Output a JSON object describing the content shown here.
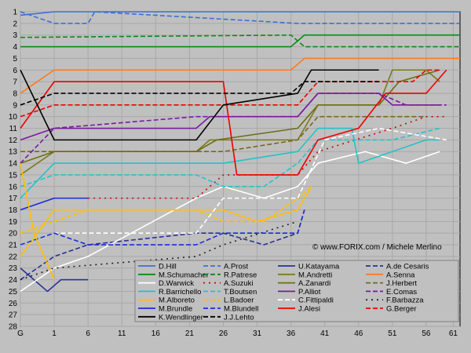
{
  "chart_data": {
    "type": "line",
    "x_ticks": [
      "G",
      "1",
      "6",
      "11",
      "16",
      "21",
      "26",
      "31",
      "36",
      "41",
      "46",
      "51",
      "56",
      "61"
    ],
    "y_ticks": [
      1,
      2,
      3,
      4,
      5,
      6,
      7,
      8,
      9,
      10,
      11,
      12,
      13,
      14,
      15,
      16,
      17,
      18,
      19,
      20,
      21,
      22,
      23,
      24,
      25,
      26,
      27,
      28
    ],
    "xlim": [
      0,
      65
    ],
    "ylim": [
      1,
      28
    ],
    "grid": true,
    "legend_placement": "bottom-right",
    "credit": "© www.FORIX.com / Michele Merlino",
    "series": [
      {
        "name": "D.Hill",
        "color": "#3a6fd8",
        "dash": "solid",
        "points": [
          [
            0,
            1.3
          ],
          [
            5,
            1
          ],
          [
            10,
            1
          ],
          [
            11,
            1
          ],
          [
            41,
            1
          ],
          [
            65,
            1
          ]
        ]
      },
      {
        "name": "A.Prost",
        "color": "#3a6fd8",
        "dash": "dashed",
        "points": [
          [
            0,
            1
          ],
          [
            5,
            2
          ],
          [
            10,
            2
          ],
          [
            11,
            1
          ],
          [
            41,
            2
          ],
          [
            65,
            2
          ]
        ]
      },
      {
        "name": "U.Katayama",
        "color": "#2a2f99",
        "dash": "solid",
        "points": [
          [
            0,
            23
          ],
          [
            4,
            25
          ],
          [
            6,
            24
          ],
          [
            10,
            24
          ]
        ]
      },
      {
        "name": "A.de Cesaris",
        "color": "#2a2f99",
        "dash": "dashed",
        "points": [
          [
            0,
            24
          ],
          [
            5,
            22
          ],
          [
            10,
            21
          ],
          [
            26,
            20
          ],
          [
            30,
            20
          ],
          [
            36,
            21
          ],
          [
            41,
            20
          ],
          [
            42,
            18
          ]
        ]
      },
      {
        "name": "M.Schumacher",
        "color": "#0a8a16",
        "dash": "solid",
        "points": [
          [
            0,
            4
          ],
          [
            40,
            4
          ],
          [
            42,
            3
          ],
          [
            65,
            3
          ]
        ]
      },
      {
        "name": "R.Patrese",
        "color": "#0a8a16",
        "dash": "dashed",
        "points": [
          [
            0,
            3.2
          ],
          [
            40,
            3
          ],
          [
            42,
            4
          ],
          [
            65,
            4
          ]
        ]
      },
      {
        "name": "M.Andretti",
        "color": "#7a7a1c",
        "dash": "solid",
        "points": [
          [
            0,
            15
          ],
          [
            5,
            13
          ],
          [
            26,
            13
          ],
          [
            28,
            12
          ],
          [
            41,
            12
          ],
          [
            44,
            9
          ],
          [
            53,
            9
          ],
          [
            55,
            6
          ],
          [
            60,
            6
          ],
          [
            62,
            7
          ]
        ]
      },
      {
        "name": "A.Senna",
        "color": "#ff7a1a",
        "dash": "solid",
        "points": [
          [
            0,
            8
          ],
          [
            5,
            6
          ],
          [
            40,
            6
          ],
          [
            42,
            5
          ],
          [
            65,
            5
          ]
        ]
      },
      {
        "name": "D.Warwick",
        "color": "#ffffff",
        "dash": "solid",
        "points": [
          [
            0,
            25
          ],
          [
            5,
            23
          ],
          [
            10,
            22
          ],
          [
            26,
            17
          ],
          [
            30,
            16
          ],
          [
            36,
            17
          ],
          [
            41,
            16
          ],
          [
            44,
            14
          ],
          [
            51,
            13
          ],
          [
            57,
            14
          ],
          [
            62,
            13
          ]
        ]
      },
      {
        "name": "A.Suzuki",
        "color": "#cc0000",
        "dash": "dotted",
        "points": [
          [
            10,
            17
          ],
          [
            26,
            17
          ],
          [
            30,
            15
          ],
          [
            41,
            15
          ],
          [
            44,
            13
          ],
          [
            55,
            11
          ],
          [
            60,
            10
          ],
          [
            63,
            10
          ]
        ]
      },
      {
        "name": "A.Zanardi",
        "color": "#6e6e14",
        "dash": "solid",
        "points": [
          [
            0,
            14
          ],
          [
            5,
            13
          ],
          [
            26,
            13
          ],
          [
            29,
            12
          ],
          [
            41,
            11
          ],
          [
            44,
            9
          ],
          [
            53,
            9
          ],
          [
            56,
            7
          ],
          [
            62,
            6
          ]
        ]
      },
      {
        "name": "J.Herbert",
        "color": "#7a6620",
        "dash": "dashed",
        "points": [
          [
            0,
            13
          ],
          [
            5,
            13
          ],
          [
            26,
            13
          ],
          [
            30,
            13
          ],
          [
            41,
            12
          ],
          [
            44,
            10
          ],
          [
            60,
            10
          ]
        ]
      },
      {
        "name": "R.Barrichello",
        "color": "#22c3c8",
        "dash": "solid",
        "points": [
          [
            0,
            17
          ],
          [
            5,
            14
          ],
          [
            26,
            14
          ],
          [
            30,
            14
          ],
          [
            41,
            13
          ],
          [
            44,
            11
          ],
          [
            49,
            11
          ],
          [
            50,
            14
          ],
          [
            55,
            13
          ],
          [
            60,
            12
          ],
          [
            62,
            12
          ]
        ]
      },
      {
        "name": "T.Boutsen",
        "color": "#22c3c8",
        "dash": "dashed",
        "points": [
          [
            0,
            16
          ],
          [
            5,
            15
          ],
          [
            26,
            15
          ],
          [
            30,
            16
          ],
          [
            36,
            16
          ],
          [
            41,
            14
          ],
          [
            44,
            12
          ],
          [
            51,
            12
          ],
          [
            55,
            12
          ],
          [
            62,
            11
          ]
        ]
      },
      {
        "name": "P.Alliot",
        "color": "#7a1aa0",
        "dash": "solid",
        "points": [
          [
            0,
            12
          ],
          [
            5,
            11
          ],
          [
            26,
            11
          ],
          [
            28,
            10
          ],
          [
            41,
            10
          ],
          [
            44,
            8
          ],
          [
            53,
            8
          ],
          [
            55,
            9
          ],
          [
            60,
            9
          ],
          [
            62,
            9
          ]
        ]
      },
      {
        "name": "E.Comas",
        "color": "#7a1aa0",
        "dash": "dashed",
        "points": [
          [
            0,
            14
          ],
          [
            5,
            11
          ],
          [
            26,
            10
          ],
          [
            30,
            10
          ],
          [
            41,
            10
          ],
          [
            44,
            8
          ],
          [
            53,
            8
          ],
          [
            57,
            9
          ],
          [
            63,
            9
          ]
        ]
      },
      {
        "name": "M.Alboreto",
        "color": "#ffc000",
        "dash": "solid",
        "points": [
          [
            0,
            22
          ],
          [
            5,
            18
          ],
          [
            10,
            18
          ],
          [
            26,
            18
          ],
          [
            30,
            18
          ],
          [
            35,
            19
          ],
          [
            41,
            18
          ],
          [
            43,
            16
          ]
        ]
      },
      {
        "name": "L.Badoer",
        "color": "#ffc000",
        "dash": "dashed",
        "points": [
          [
            0,
            20
          ],
          [
            5,
            19
          ],
          [
            10,
            18
          ],
          [
            26,
            18
          ],
          [
            30,
            19
          ],
          [
            36,
            19
          ],
          [
            41,
            17
          ],
          [
            43,
            16
          ]
        ]
      },
      {
        "name": "C.Fittipaldi",
        "color": "#ffffff",
        "dash": "dashed",
        "points": [
          [
            0,
            21
          ],
          [
            5,
            20
          ],
          [
            26,
            20
          ],
          [
            30,
            17
          ],
          [
            41,
            17
          ],
          [
            45,
            12
          ],
          [
            53,
            11
          ],
          [
            63,
            12
          ]
        ]
      },
      {
        "name": "F.Barbazza",
        "color": "#222222",
        "dash": "dotted",
        "points": [
          [
            0,
            24
          ],
          [
            5,
            23
          ],
          [
            26,
            22
          ],
          [
            30,
            21
          ],
          [
            41,
            19
          ]
        ]
      },
      {
        "name": "M.Brundle",
        "color": "#1a2bd8",
        "dash": "solid",
        "points": [
          [
            0,
            18
          ],
          [
            5,
            17
          ],
          [
            10,
            17
          ]
        ]
      },
      {
        "name": "M.Blundell",
        "color": "#1a2bd8",
        "dash": "dashed",
        "points": [
          [
            0,
            21
          ],
          [
            5,
            20
          ],
          [
            10,
            21
          ],
          [
            26,
            21
          ],
          [
            30,
            20
          ],
          [
            41,
            20
          ],
          [
            42,
            18
          ]
        ]
      },
      {
        "name": "J.Alesi",
        "color": "#ee0000",
        "dash": "solid",
        "points": [
          [
            0,
            11
          ],
          [
            5,
            7
          ],
          [
            30,
            7
          ],
          [
            32,
            15
          ],
          [
            41,
            15
          ],
          [
            44,
            12
          ],
          [
            50,
            11
          ],
          [
            54,
            8
          ],
          [
            60,
            8
          ],
          [
            63,
            6
          ]
        ]
      },
      {
        "name": "G.Berger",
        "color": "#ee0000",
        "dash": "dashed",
        "points": [
          [
            0,
            10
          ],
          [
            5,
            9
          ],
          [
            30,
            9
          ],
          [
            41,
            9
          ],
          [
            44,
            7
          ],
          [
            55,
            7
          ],
          [
            58,
            7
          ],
          [
            60,
            6
          ],
          [
            62,
            6
          ]
        ]
      },
      {
        "name": "K.Wendlinger",
        "color": "#000000",
        "dash": "solid",
        "points": [
          [
            0,
            6
          ],
          [
            5,
            12
          ],
          [
            26,
            12
          ],
          [
            30,
            9
          ],
          [
            41,
            8
          ],
          [
            43,
            6
          ],
          [
            53,
            6
          ]
        ]
      },
      {
        "name": "J.J.Lehto",
        "color": "#000000",
        "dash": "dashed",
        "points": [
          [
            0,
            9
          ],
          [
            5,
            8
          ],
          [
            40,
            8
          ],
          [
            42,
            7
          ],
          [
            53,
            7
          ]
        ]
      }
    ],
    "extra_marks": [
      {
        "series": "F.Barbazza",
        "color": "#ffc000",
        "points": [
          [
            0,
            14
          ],
          [
            2,
            20
          ],
          [
            5,
            24
          ]
        ]
      }
    ]
  }
}
